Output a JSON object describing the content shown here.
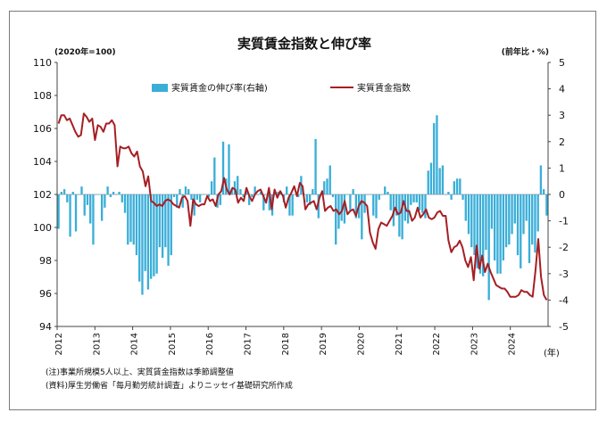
{
  "chart_data": {
    "type": "bar+line",
    "title": "実質賃金指数と伸び率",
    "left_axis_unit": "(2020年=100)",
    "right_axis_unit": "(前年比・%)",
    "x_unit": "(年)",
    "left_ylim": [
      94,
      110
    ],
    "left_ticks": [
      "94",
      "96",
      "98",
      "100",
      "102",
      "104",
      "106",
      "108",
      "110"
    ],
    "right_ylim": [
      -5,
      5
    ],
    "right_ticks": [
      "-5",
      "-4",
      "-3",
      "-2",
      "-1",
      "0",
      "1",
      "2",
      "3",
      "4",
      "5"
    ],
    "x_ticks": [
      "2012",
      "2013",
      "2014",
      "2015",
      "2016",
      "2017",
      "2018",
      "2019",
      "2020",
      "2021",
      "2022",
      "2023",
      "2024"
    ],
    "legend_position": "top-center",
    "series": [
      {
        "name": "実質賃金の伸び率(右軸)",
        "type": "bar",
        "axis": "right",
        "color": "#3aaed8",
        "values": [
          -1.3,
          0.1,
          0.2,
          -0.3,
          -1.6,
          0.1,
          -1.4,
          0.0,
          0.3,
          -0.8,
          -0.4,
          -1.1,
          -1.9,
          0.0,
          0.0,
          -1.0,
          -0.5,
          0.3,
          -0.1,
          0.1,
          0.0,
          0.1,
          -0.3,
          -0.7,
          -1.9,
          -1.8,
          -1.9,
          -2.3,
          -3.3,
          -3.8,
          -2.9,
          -3.6,
          -3.2,
          -3.1,
          -3.0,
          -2.0,
          -2.4,
          -2.0,
          -2.7,
          -2.3,
          -0.1,
          -0.5,
          0.2,
          -0.5,
          0.3,
          0.2,
          -0.2,
          -0.8,
          -0.2,
          -0.3,
          0.0,
          0.0,
          -0.1,
          0.5,
          1.4,
          -0.5,
          -0.4,
          2.0,
          0.6,
          1.9,
          0.2,
          0.5,
          0.7,
          0.2,
          -0.1,
          0.2,
          -0.4,
          -0.1,
          0.3,
          0.0,
          0.1,
          -0.6,
          0.0,
          -0.6,
          -0.8,
          0.0,
          0.1,
          0.1,
          -0.3,
          0.3,
          -0.8,
          -0.8,
          0.0,
          -0.1,
          0.7,
          0.0,
          -0.3,
          -0.4,
          0.2,
          2.1,
          -0.9,
          0.0,
          0.5,
          0.6,
          1.1,
          -0.1,
          -1.9,
          -1.3,
          -1.0,
          -1.1,
          0.0,
          -0.6,
          0.2,
          -0.9,
          -0.9,
          -1.7,
          -0.7,
          0.0,
          0.0,
          -0.8,
          -0.9,
          -0.2,
          0.0,
          0.3,
          0.1,
          -0.6,
          -1.2,
          -0.8,
          -1.6,
          -1.7,
          -1.0,
          -1.1,
          -0.4,
          -0.3,
          -0.3,
          -0.6,
          -0.7,
          -0.9,
          0.9,
          1.2,
          2.7,
          3.0,
          1.0,
          1.1,
          0.0,
          0.1,
          -0.2,
          0.5,
          0.6,
          0.6,
          -0.2,
          -1.0,
          -1.5,
          -2.0,
          -2.3,
          -2.8,
          -3.0,
          -3.1,
          -2.1,
          -4.0,
          -1.3,
          -2.5,
          -3.0,
          -3.0,
          -2.5,
          -2.0,
          -1.9,
          -1.5,
          -1.1,
          -2.3,
          -2.8,
          -1.5,
          -1.0,
          -2.6,
          -1.9,
          -2.2,
          -1.4,
          1.1,
          0.2,
          -0.8
        ]
      },
      {
        "name": "実質賃金指数",
        "type": "line",
        "axis": "left",
        "color": "#a51f24",
        "values": [
          106.3,
          106.8,
          106.8,
          106.5,
          106.6,
          106.2,
          105.8,
          105.5,
          105.6,
          106.9,
          106.7,
          106.4,
          106.6,
          105.3,
          106.2,
          106.1,
          105.8,
          106.3,
          106.3,
          106.5,
          106.2,
          103.7,
          104.9,
          104.8,
          104.8,
          104.9,
          104.5,
          104.3,
          104.6,
          103.7,
          103.4,
          102.5,
          103.1,
          101.6,
          101.5,
          101.3,
          101.4,
          101.3,
          101.6,
          101.7,
          101.6,
          101.4,
          101.3,
          101.2,
          101.8,
          101.9,
          101.6,
          100.1,
          101.7,
          101.4,
          101.3,
          101.4,
          101.4,
          101.9,
          101.6,
          101.7,
          101.3,
          102.0,
          102.2,
          103.0,
          102.3,
          102.0,
          102.4,
          102.3,
          101.5,
          101.8,
          101.6,
          102.4,
          101.9,
          101.6,
          102.0,
          102.2,
          102.3,
          101.9,
          101.5,
          102.4,
          101.1,
          102.3,
          101.8,
          102.2,
          101.9,
          101.2,
          101.8,
          102.1,
          102.5,
          101.9,
          102.7,
          102.5,
          101.1,
          101.4,
          101.5,
          101.6,
          101.1,
          101.8,
          102.2,
          101.0,
          101.2,
          101.3,
          101.0,
          101.1,
          100.8,
          101.0,
          101.6,
          100.8,
          101.0,
          101.1,
          100.7,
          101.3,
          101.6,
          101.5,
          101.3,
          99.7,
          99.1,
          98.7,
          99.9,
          100.3,
          100.2,
          100.1,
          100.4,
          100.7,
          101.2,
          100.8,
          100.9,
          101.6,
          101.0,
          101.0,
          100.4,
          100.6,
          101.2,
          100.6,
          100.8,
          101.1,
          100.6,
          100.5,
          100.6,
          100.9,
          101.0,
          100.7,
          100.7,
          99.2,
          98.5,
          98.8,
          98.9,
          99.2,
          98.8,
          98.0,
          97.6,
          98.2,
          96.8,
          98.9,
          97.5,
          98.3,
          97.3,
          97.8,
          97.3,
          96.9,
          96.5,
          96.4,
          96.3,
          96.3,
          96.1,
          95.8,
          95.8,
          95.8,
          95.9,
          96.2,
          96.1,
          96.1,
          95.9,
          95.8,
          97.4,
          99.3,
          97.0,
          95.9,
          95.6
        ]
      }
    ],
    "notes": [
      "(注)事業所規模5人以上、実質賃金指数は季節調整値",
      "(資料)厚生労働省「毎月勤労統計調査」よりニッセイ基礎研究所作成"
    ]
  }
}
